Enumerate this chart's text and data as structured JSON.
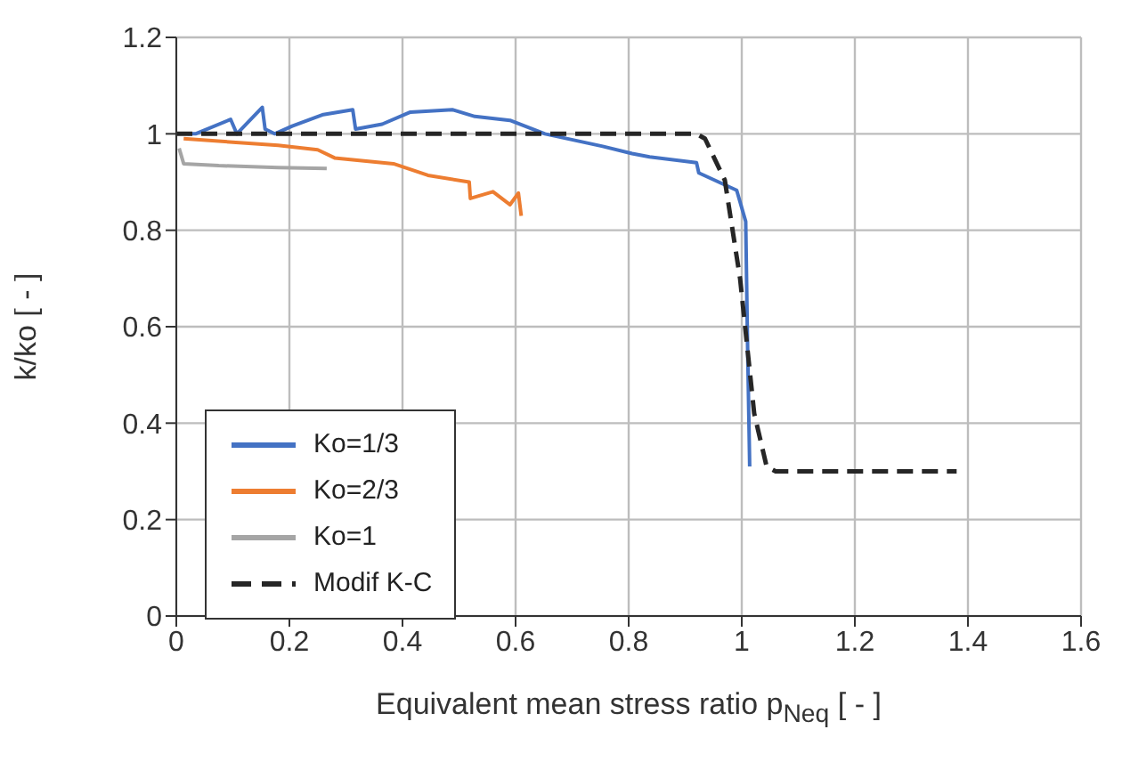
{
  "chart_data": {
    "type": "line",
    "xlabel": "Equivalent mean stress ratio p$_{Neq}$ [ - ]",
    "ylabel": "k/ko  [ - ]",
    "xlim": [
      0,
      1.6
    ],
    "xticks": [
      0,
      0.2,
      0.4,
      0.6,
      0.8,
      1,
      1.2,
      1.4,
      1.6
    ],
    "ylim": [
      0,
      1.2
    ],
    "yticks": [
      0,
      0.2,
      0.4,
      0.6,
      0.8,
      1,
      1.2
    ],
    "grid": true,
    "legend": "bottom left",
    "marker": "none",
    "series": [
      {
        "name": "Ko=1/3",
        "color": "#4472c4",
        "line_style": "solid",
        "x": [
          0.02,
          0.034,
          0.096,
          0.107,
          0.152,
          0.157,
          0.174,
          0.205,
          0.26,
          0.312,
          0.317,
          0.364,
          0.414,
          0.488,
          0.528,
          0.59,
          0.652,
          0.754,
          0.806,
          0.837,
          0.92,
          0.924,
          0.991,
          1.007,
          1.01,
          1.014
        ],
        "values": [
          1.0,
          1.0,
          1.03,
          1.0,
          1.055,
          1.01,
          1.0,
          1.016,
          1.04,
          1.05,
          1.01,
          1.02,
          1.045,
          1.05,
          1.036,
          1.028,
          1.0,
          0.974,
          0.959,
          0.952,
          0.94,
          0.919,
          0.883,
          0.818,
          0.58,
          0.31
        ]
      },
      {
        "name": "Ko=2/3",
        "color": "#ed7d31",
        "line_style": "solid",
        "x": [
          0.013,
          0.18,
          0.25,
          0.28,
          0.384,
          0.445,
          0.518,
          0.52,
          0.56,
          0.59,
          0.605,
          0.61
        ],
        "values": [
          0.99,
          0.976,
          0.967,
          0.95,
          0.938,
          0.914,
          0.9,
          0.866,
          0.88,
          0.853,
          0.877,
          0.83
        ]
      },
      {
        "name": "Ko=1",
        "color": "#a5a5a5",
        "line_style": "solid",
        "x": [
          0.005,
          0.013,
          0.075,
          0.18,
          0.266
        ],
        "values": [
          0.97,
          0.938,
          0.934,
          0.93,
          0.928
        ]
      },
      {
        "name": "Modif K-C",
        "color": "#262626",
        "line_style": "dashed",
        "x": [
          0,
          0.92,
          0.935,
          0.97,
          0.997,
          1.022,
          1.044,
          1.06,
          1.38
        ],
        "values": [
          1.0,
          1.0,
          0.99,
          0.904,
          0.7,
          0.42,
          0.31,
          0.3,
          0.3
        ]
      }
    ]
  }
}
